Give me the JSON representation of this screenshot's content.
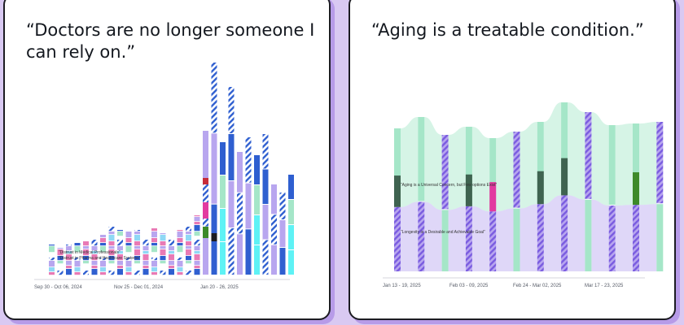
{
  "colors": {
    "background": "#d9c9f2",
    "card": "#ffffff",
    "border": "#1c1c22",
    "shadow": "#b79be8",
    "lavender": "#b8a6ef",
    "mint": "#a5e6c8",
    "dark_green": "#3f6350",
    "bright_green": "#3d8a2a",
    "magenta": "#e23aa0",
    "cyan": "#5ef2f5",
    "royal_blue": "#2f5fd0",
    "pink": "#e97ab5",
    "red": "#c62c3a",
    "light_blue": "#8fd8f5"
  },
  "cards": [
    {
      "quote": "“Doctors are no longer someone I can rely on.”",
      "chart_data": {
        "type": "bar",
        "x_ticks": [
          "Sep 30 - Oct 06, 2024",
          "Nov 25 - Dec 01, 2024",
          "Jan 20 - 26, 2025"
        ],
        "annotations": [
          "“Distrust in Medical Professionals”",
          "“Distrust in Pharma and Healthcare Systems”"
        ],
        "heights": [
          38,
          34,
          38,
          40,
          42,
          48,
          50,
          64,
          56,
          54,
          56,
          44,
          58,
          52,
          48,
          56,
          64,
          74,
          178,
          262,
          164,
          232,
          152,
          170,
          148,
          174,
          112,
          102,
          124
        ],
        "grid": false
      }
    },
    {
      "quote": "“Aging is a treatable condition.”",
      "chart_data": {
        "type": "area",
        "x_ticks": [
          "Jan 13 - 19, 2025",
          "Feb 03 - 09, 2025",
          "Feb 24 - Mar 02, 2025",
          "Mar 17 - 23, 2025"
        ],
        "annotations": [
          "“Aging is a Universal Concern, but Few options Exist”",
          "“Longevity is a Desirable and Achievable Goal”"
        ],
        "stream_heights": [
          176,
          190,
          168,
          178,
          164,
          172,
          184,
          208,
          196,
          180,
          182,
          184
        ],
        "grid": false
      }
    }
  ]
}
